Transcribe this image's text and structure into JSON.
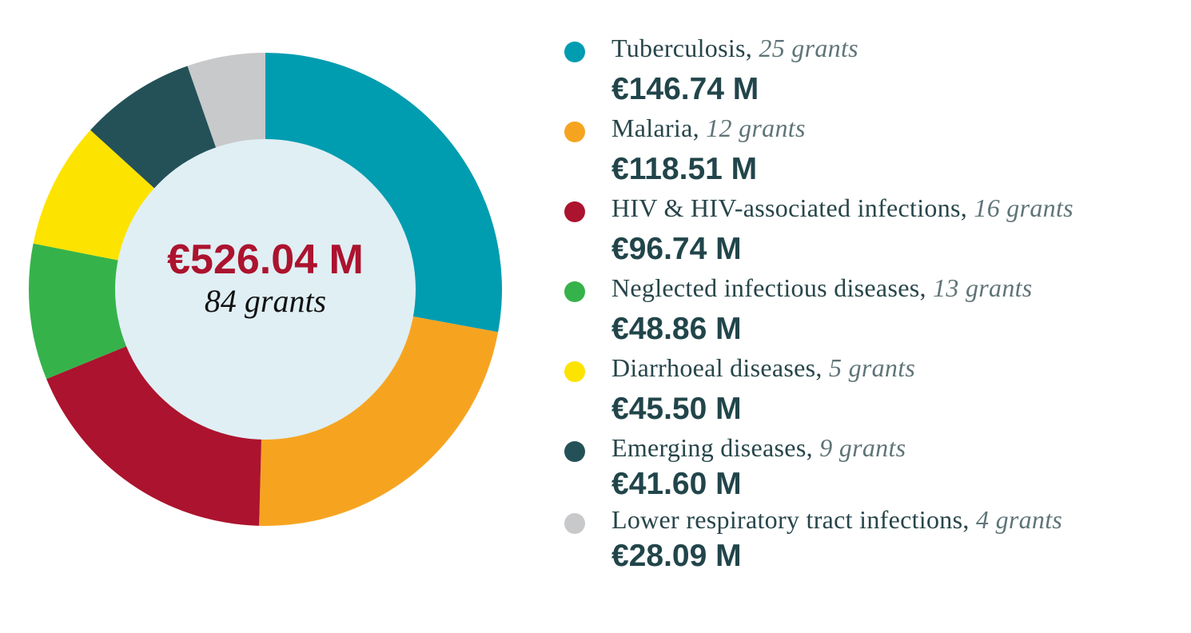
{
  "chart_data": {
    "type": "pie",
    "variant": "donut",
    "total_label": "€526.04 M",
    "total_grants_label": "84 grants",
    "unit": "€ M",
    "slices": [
      {
        "name": "Tuberculosis",
        "grants_label": "25 grants",
        "value": 146.74,
        "value_label": "€146.74 M",
        "color": "#009cb0"
      },
      {
        "name": "Malaria",
        "grants_label": "12 grants",
        "value": 118.51,
        "value_label": "€118.51 M",
        "color": "#f6a420"
      },
      {
        "name": "HIV & HIV-associated infections",
        "grants_label": "16 grants",
        "value": 96.74,
        "value_label": "€96.74 M",
        "color": "#ac132e"
      },
      {
        "name": "Neglected infectious diseases",
        "grants_label": "13 grants",
        "value": 48.86,
        "value_label": "€48.86 M",
        "color": "#35b34a"
      },
      {
        "name": "Diarrhoeal diseases",
        "grants_label": "5 grants",
        "value": 45.5,
        "value_label": "€45.50 M",
        "color": "#fde300"
      },
      {
        "name": "Emerging diseases",
        "grants_label": "9 grants",
        "value": 41.6,
        "value_label": "€41.60 M",
        "color": "#245158"
      },
      {
        "name": "Lower respiratory tract infections",
        "grants_label": "4 grants",
        "value": 28.09,
        "value_label": "€28.09 M",
        "color": "#c8c9cb"
      }
    ],
    "center_fill": "#e0eff4",
    "total_color": "#ac132e"
  }
}
